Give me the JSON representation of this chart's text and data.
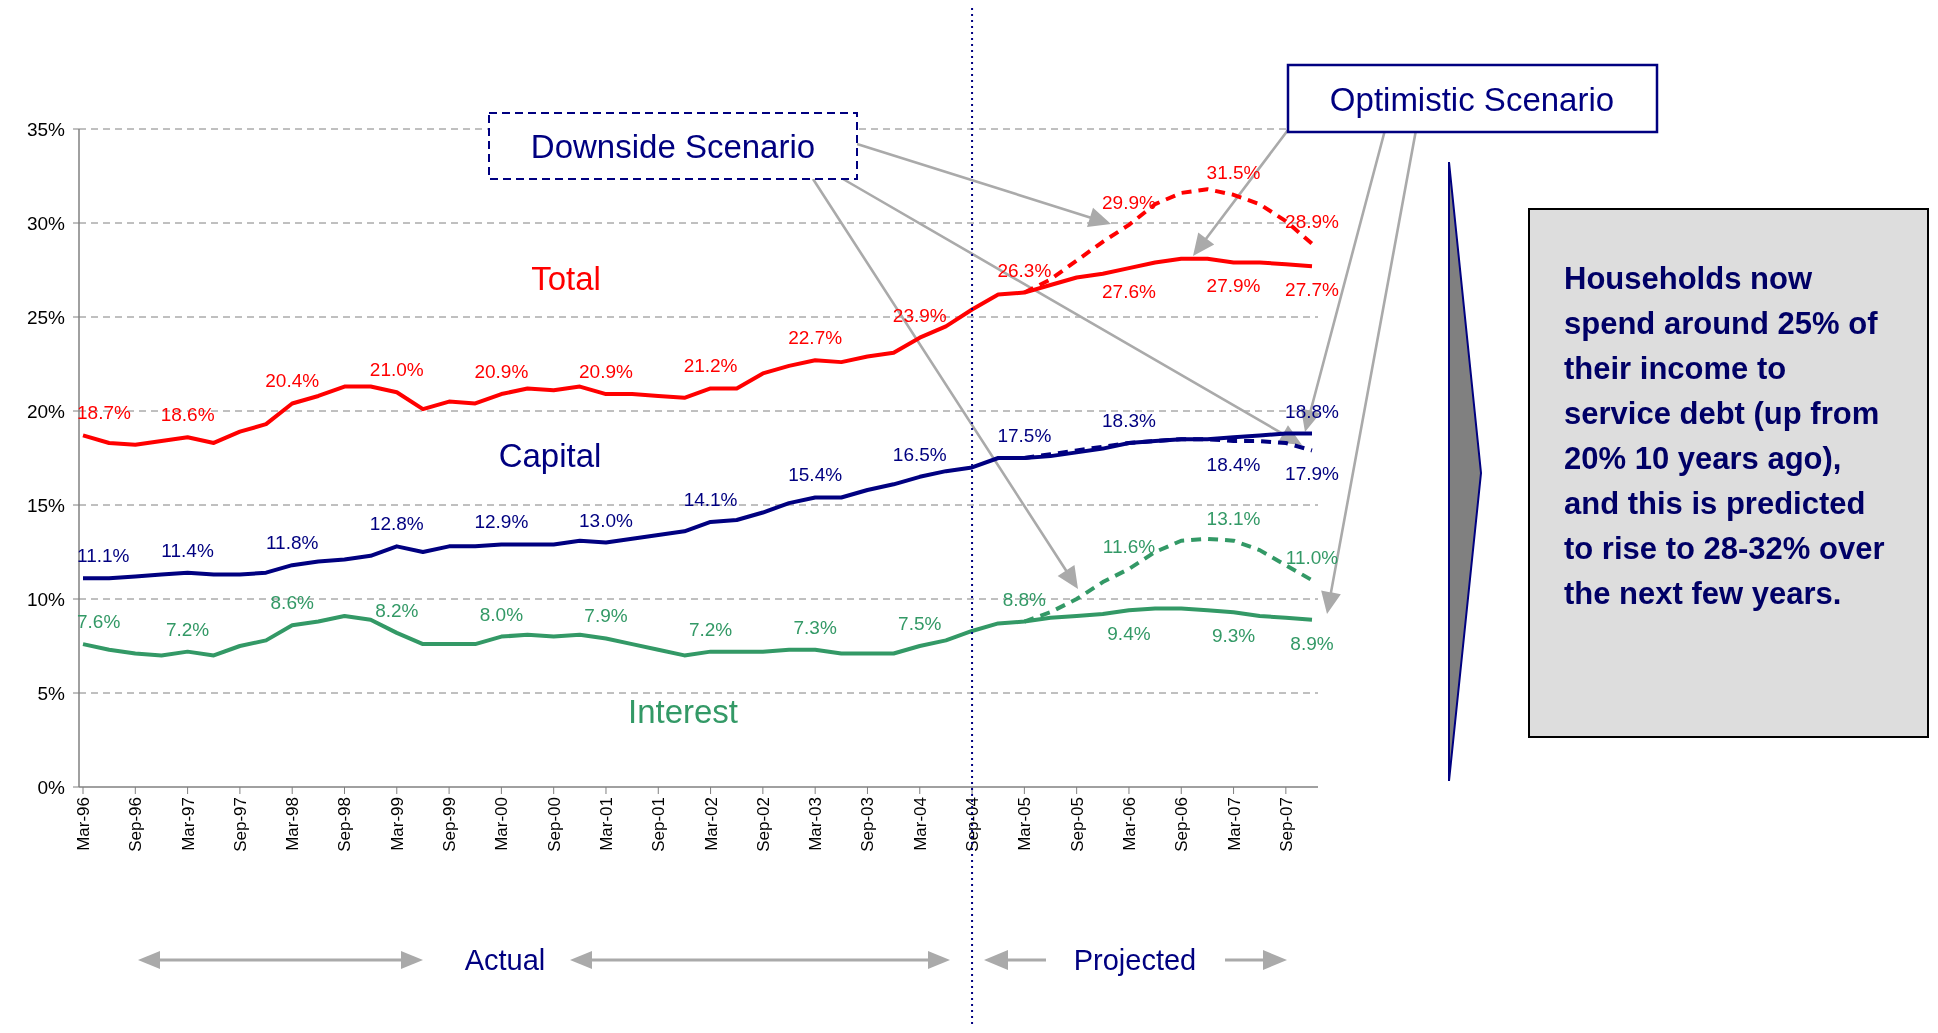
{
  "chart_data": {
    "type": "line",
    "categories": [
      "Mar-96",
      null,
      "Sep-96",
      null,
      "Mar-97",
      null,
      "Sep-97",
      null,
      "Mar-98",
      null,
      "Sep-98",
      null,
      "Mar-99",
      null,
      "Sep-99",
      null,
      "Mar-00",
      null,
      "Sep-00",
      null,
      "Mar-01",
      null,
      "Sep-01",
      null,
      "Mar-02",
      null,
      "Sep-02",
      null,
      "Mar-03",
      null,
      "Sep-03",
      null,
      "Mar-04",
      null,
      "Sep-04",
      null,
      "Mar-05",
      null,
      "Sep-05",
      null,
      "Mar-06",
      null,
      "Sep-06",
      null,
      "Mar-07",
      null,
      "Sep-07",
      null
    ],
    "series": [
      {
        "name": "Total",
        "color": "#ff0000",
        "line_style": "solid",
        "values": [
          18.7,
          18.3,
          18.2,
          18.4,
          18.6,
          18.3,
          18.9,
          19.3,
          20.4,
          20.8,
          21.3,
          21.3,
          21.0,
          20.1,
          20.5,
          20.4,
          20.9,
          21.2,
          21.1,
          21.3,
          20.9,
          20.9,
          20.8,
          20.7,
          21.2,
          21.2,
          22.0,
          22.4,
          22.7,
          22.6,
          22.9,
          23.1,
          23.9,
          24.5,
          25.4,
          26.2,
          26.3,
          26.7,
          27.1,
          27.3,
          27.6,
          27.9,
          28.1,
          28.1,
          27.9,
          27.9,
          27.8,
          27.7
        ],
        "value_labels": [
          "18.7%",
          null,
          null,
          null,
          "18.6%",
          null,
          null,
          null,
          "20.4%",
          null,
          null,
          null,
          "21.0%",
          null,
          null,
          null,
          "20.9%",
          null,
          null,
          null,
          "20.9%",
          null,
          null,
          null,
          "21.2%",
          null,
          null,
          null,
          "22.7%",
          null,
          null,
          null,
          "23.9%",
          null,
          null,
          null,
          "26.3%",
          null,
          null,
          null,
          "27.6%",
          null,
          null,
          null,
          "27.9%",
          null,
          null,
          "27.7%"
        ]
      },
      {
        "color": "#ff0000",
        "line_style": "dashed",
        "values": [
          null,
          null,
          null,
          null,
          null,
          null,
          null,
          null,
          null,
          null,
          null,
          null,
          null,
          null,
          null,
          null,
          null,
          null,
          null,
          null,
          null,
          null,
          null,
          null,
          null,
          null,
          null,
          null,
          null,
          null,
          null,
          null,
          null,
          null,
          null,
          null,
          26.3,
          27.0,
          28.0,
          29.0,
          29.9,
          31.0,
          31.6,
          31.8,
          31.5,
          31.0,
          30.1,
          28.9
        ],
        "value_labels": [
          null,
          null,
          null,
          null,
          null,
          null,
          null,
          null,
          null,
          null,
          null,
          null,
          null,
          null,
          null,
          null,
          null,
          null,
          null,
          null,
          null,
          null,
          null,
          null,
          null,
          null,
          null,
          null,
          null,
          null,
          null,
          null,
          null,
          null,
          null,
          null,
          null,
          null,
          null,
          null,
          "29.9%",
          null,
          null,
          null,
          "31.5%",
          null,
          null,
          "28.9%"
        ]
      },
      {
        "name": "Capital",
        "color": "#000080",
        "line_style": "solid",
        "values": [
          11.1,
          11.1,
          11.2,
          11.3,
          11.4,
          11.3,
          11.3,
          11.4,
          11.8,
          12.0,
          12.1,
          12.3,
          12.8,
          12.5,
          12.8,
          12.8,
          12.9,
          12.9,
          12.9,
          13.1,
          13.0,
          13.2,
          13.4,
          13.6,
          14.1,
          14.2,
          14.6,
          15.1,
          15.4,
          15.4,
          15.8,
          16.1,
          16.5,
          16.8,
          17.0,
          17.5,
          17.5,
          17.6,
          17.8,
          18.0,
          18.3,
          18.4,
          18.5,
          18.5,
          18.6,
          18.7,
          18.8,
          18.8
        ],
        "value_labels": [
          "11.1%",
          null,
          null,
          null,
          "11.4%",
          null,
          null,
          null,
          "11.8%",
          null,
          null,
          null,
          "12.8%",
          null,
          null,
          null,
          "12.9%",
          null,
          null,
          null,
          "13.0%",
          null,
          null,
          null,
          "14.1%",
          null,
          null,
          null,
          "15.4%",
          null,
          null,
          null,
          "16.5%",
          null,
          null,
          null,
          "17.5%",
          null,
          null,
          null,
          "18.3%",
          null,
          null,
          null,
          null,
          null,
          null,
          "18.8%"
        ]
      },
      {
        "color": "#000080",
        "line_style": "dashed",
        "values": [
          null,
          null,
          null,
          null,
          null,
          null,
          null,
          null,
          null,
          null,
          null,
          null,
          null,
          null,
          null,
          null,
          null,
          null,
          null,
          null,
          null,
          null,
          null,
          null,
          null,
          null,
          null,
          null,
          null,
          null,
          null,
          null,
          null,
          null,
          null,
          null,
          17.5,
          17.7,
          17.9,
          18.1,
          18.3,
          18.4,
          18.5,
          18.5,
          18.4,
          18.4,
          18.3,
          17.9
        ],
        "value_labels": [
          null,
          null,
          null,
          null,
          null,
          null,
          null,
          null,
          null,
          null,
          null,
          null,
          null,
          null,
          null,
          null,
          null,
          null,
          null,
          null,
          null,
          null,
          null,
          null,
          null,
          null,
          null,
          null,
          null,
          null,
          null,
          null,
          null,
          null,
          null,
          null,
          null,
          null,
          null,
          null,
          null,
          null,
          null,
          null,
          "18.4%",
          null,
          null,
          "17.9%"
        ]
      },
      {
        "name": "Interest",
        "color": "#339966",
        "line_style": "solid",
        "values": [
          7.6,
          7.3,
          7.1,
          7.0,
          7.2,
          7.0,
          7.5,
          7.8,
          8.6,
          8.8,
          9.1,
          8.9,
          8.2,
          7.6,
          7.6,
          7.6,
          8.0,
          8.1,
          8.0,
          8.1,
          7.9,
          7.6,
          7.3,
          7.0,
          7.2,
          7.2,
          7.2,
          7.3,
          7.3,
          7.1,
          7.1,
          7.1,
          7.5,
          7.8,
          8.3,
          8.7,
          8.8,
          9.0,
          9.1,
          9.2,
          9.4,
          9.5,
          9.5,
          9.4,
          9.3,
          9.1,
          9.0,
          8.9
        ],
        "value_labels": [
          "7.6%",
          null,
          null,
          null,
          "7.2%",
          null,
          null,
          null,
          "8.6%",
          null,
          null,
          null,
          "8.2%",
          null,
          null,
          null,
          "8.0%",
          null,
          null,
          null,
          "7.9%",
          null,
          null,
          null,
          "7.2%",
          null,
          null,
          null,
          "7.3%",
          null,
          null,
          null,
          "7.5%",
          null,
          null,
          null,
          "8.8%",
          null,
          null,
          null,
          "9.4%",
          null,
          null,
          null,
          "9.3%",
          null,
          null,
          "8.9%"
        ]
      },
      {
        "color": "#339966",
        "line_style": "dashed",
        "values": [
          null,
          null,
          null,
          null,
          null,
          null,
          null,
          null,
          null,
          null,
          null,
          null,
          null,
          null,
          null,
          null,
          null,
          null,
          null,
          null,
          null,
          null,
          null,
          null,
          null,
          null,
          null,
          null,
          null,
          null,
          null,
          null,
          null,
          null,
          null,
          null,
          8.8,
          9.3,
          10.0,
          10.9,
          11.6,
          12.5,
          13.1,
          13.2,
          13.1,
          12.6,
          11.8,
          11.0
        ],
        "value_labels": [
          null,
          null,
          null,
          null,
          null,
          null,
          null,
          null,
          null,
          null,
          null,
          null,
          null,
          null,
          null,
          null,
          null,
          null,
          null,
          null,
          null,
          null,
          null,
          null,
          null,
          null,
          null,
          null,
          null,
          null,
          null,
          null,
          null,
          null,
          null,
          null,
          null,
          null,
          null,
          null,
          "11.6%",
          null,
          null,
          null,
          "13.1%",
          null,
          null,
          "11.0%"
        ]
      }
    ],
    "ylim": [
      0,
      35
    ],
    "yticks": [
      {
        "value": 0,
        "label": "0%"
      },
      {
        "value": 5,
        "label": "5%"
      },
      {
        "value": 10,
        "label": "10%"
      },
      {
        "value": 15,
        "label": "15%"
      },
      {
        "value": 20,
        "label": "20%"
      },
      {
        "value": 25,
        "label": "25%"
      },
      {
        "value": 30,
        "label": "30%"
      },
      {
        "value": 35,
        "label": "35%"
      }
    ],
    "grid": "y",
    "ref_lines": [
      {
        "axis": "x",
        "value": "Sep-04",
        "color": "#000080",
        "line_style": "dotted"
      }
    ],
    "annotations": [
      "Downside Scenario",
      "Optimistic Scenario",
      "Actual",
      "Projected",
      "Households now spend around 25% of their income to service debt (up from 20% 10 years ago), and this is predicted to rise to 28-32% over the next few years."
    ]
  }
}
